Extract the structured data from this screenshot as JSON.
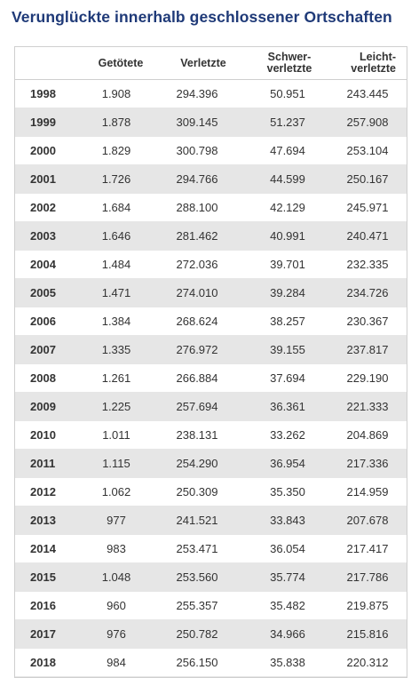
{
  "chart_data": {
    "type": "table",
    "title": "Verunglückte innerhalb geschlossener Ortschaften",
    "columns": [
      "",
      "Getötete",
      "Verletzte",
      "Schwer-\nverletzte",
      "Leicht-\nverletzte"
    ],
    "rows": [
      [
        "1998",
        "1.908",
        "294.396",
        "50.951",
        "243.445"
      ],
      [
        "1999",
        "1.878",
        "309.145",
        "51.237",
        "257.908"
      ],
      [
        "2000",
        "1.829",
        "300.798",
        "47.694",
        "253.104"
      ],
      [
        "2001",
        "1.726",
        "294.766",
        "44.599",
        "250.167"
      ],
      [
        "2002",
        "1.684",
        "288.100",
        "42.129",
        "245.971"
      ],
      [
        "2003",
        "1.646",
        "281.462",
        "40.991",
        "240.471"
      ],
      [
        "2004",
        "1.484",
        "272.036",
        "39.701",
        "232.335"
      ],
      [
        "2005",
        "1.471",
        "274.010",
        "39.284",
        "234.726"
      ],
      [
        "2006",
        "1.384",
        "268.624",
        "38.257",
        "230.367"
      ],
      [
        "2007",
        "1.335",
        "276.972",
        "39.155",
        "237.817"
      ],
      [
        "2008",
        "1.261",
        "266.884",
        "37.694",
        "229.190"
      ],
      [
        "2009",
        "1.225",
        "257.694",
        "36.361",
        "221.333"
      ],
      [
        "2010",
        "1.011",
        "238.131",
        "33.262",
        "204.869"
      ],
      [
        "2011",
        "1.115",
        "254.290",
        "36.954",
        "217.336"
      ],
      [
        "2012",
        "1.062",
        "250.309",
        "35.350",
        "214.959"
      ],
      [
        "2013",
        "977",
        "241.521",
        "33.843",
        "207.678"
      ],
      [
        "2014",
        "983",
        "253.471",
        "36.054",
        "217.417"
      ],
      [
        "2015",
        "1.048",
        "253.560",
        "35.774",
        "217.786"
      ],
      [
        "2016",
        "960",
        "255.357",
        "35.482",
        "219.875"
      ],
      [
        "2017",
        "976",
        "250.782",
        "34.966",
        "215.816"
      ],
      [
        "2018",
        "984",
        "256.150",
        "35.838",
        "220.312"
      ]
    ]
  },
  "colors": {
    "title": "#1f3a78",
    "row_stripe": "#e6e6e6",
    "text": "#333333"
  }
}
